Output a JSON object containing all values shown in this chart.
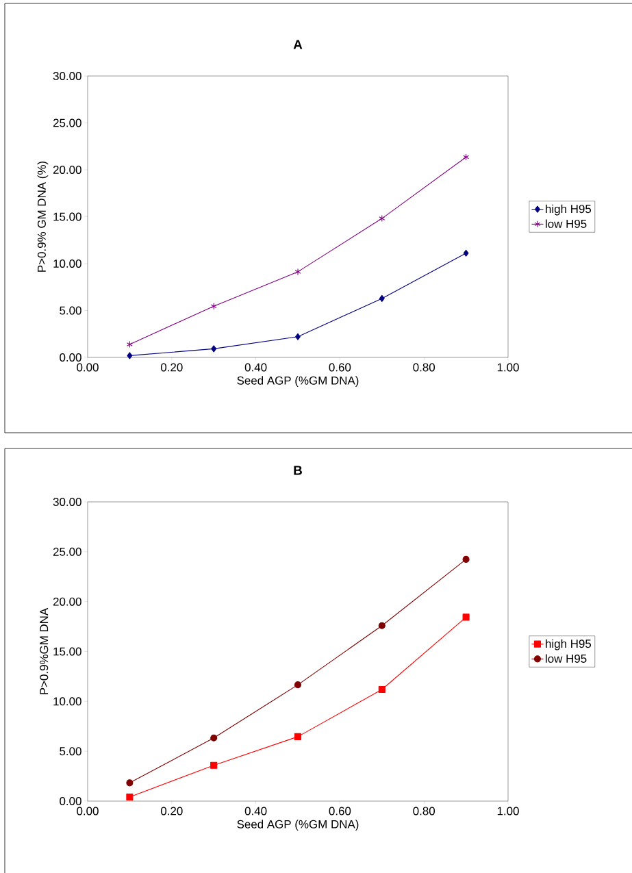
{
  "chart_data": [
    {
      "type": "line",
      "title": "A",
      "xlabel": "Seed AGP (%GM DNA)",
      "ylabel": "P>0.9% GM DNA (%)",
      "x": [
        0.1,
        0.3,
        0.5,
        0.7,
        0.9
      ],
      "series": [
        {
          "name": "high H95",
          "color": "#000080",
          "marker": "diamond",
          "values": [
            0.19,
            0.92,
            2.21,
            6.28,
            11.11
          ]
        },
        {
          "name": "low H95",
          "color": "#800080",
          "marker": "cross",
          "values": [
            1.39,
            5.46,
            9.13,
            14.81,
            21.35
          ]
        }
      ],
      "xlim": [
        0,
        1
      ],
      "ylim": [
        0,
        30
      ],
      "xticks": [
        {
          "value": 0,
          "label": "0.00"
        },
        {
          "value": 0.2,
          "label": "0.20"
        },
        {
          "value": 0.4,
          "label": "0.40"
        },
        {
          "value": 0.6,
          "label": "0.60"
        },
        {
          "value": 0.8,
          "label": "0.80"
        },
        {
          "value": 1,
          "label": "1.00"
        }
      ],
      "yticks": [
        {
          "value": 0,
          "label": "0.00"
        },
        {
          "value": 5,
          "label": "5.00"
        },
        {
          "value": 10,
          "label": "10.00"
        },
        {
          "value": 15,
          "label": "15.00"
        },
        {
          "value": 20,
          "label": "20.00"
        },
        {
          "value": 25,
          "label": "25.00"
        },
        {
          "value": 30,
          "label": "30.00"
        }
      ],
      "legend": "right",
      "grid": false
    },
    {
      "type": "line",
      "title": "B",
      "xlabel": "Seed AGP (%GM DNA)",
      "ylabel": "P>0.9%GM DNA",
      "x": [
        0.1,
        0.3,
        0.5,
        0.7,
        0.9
      ],
      "series": [
        {
          "name": "high H95",
          "color": "#ff0000",
          "marker": "square",
          "values": [
            0.41,
            3.59,
            6.46,
            11.19,
            18.44
          ]
        },
        {
          "name": "low H95",
          "color": "#800000",
          "marker": "circle",
          "values": [
            1.83,
            6.33,
            11.66,
            17.59,
            24.24
          ]
        }
      ],
      "xlim": [
        0,
        1
      ],
      "ylim": [
        0,
        30
      ],
      "xticks": [
        {
          "value": 0,
          "label": "0.00"
        },
        {
          "value": 0.2,
          "label": "0.20"
        },
        {
          "value": 0.4,
          "label": "0.40"
        },
        {
          "value": 0.6,
          "label": "0.60"
        },
        {
          "value": 0.8,
          "label": "0.80"
        },
        {
          "value": 1,
          "label": "1.00"
        }
      ],
      "yticks": [
        {
          "value": 0,
          "label": "0.00"
        },
        {
          "value": 5,
          "label": "5.00"
        },
        {
          "value": 10,
          "label": "10.00"
        },
        {
          "value": 15,
          "label": "15.00"
        },
        {
          "value": 20,
          "label": "20.00"
        },
        {
          "value": 25,
          "label": "25.00"
        },
        {
          "value": 30,
          "label": "30.00"
        }
      ],
      "legend": "right",
      "grid": false
    }
  ]
}
